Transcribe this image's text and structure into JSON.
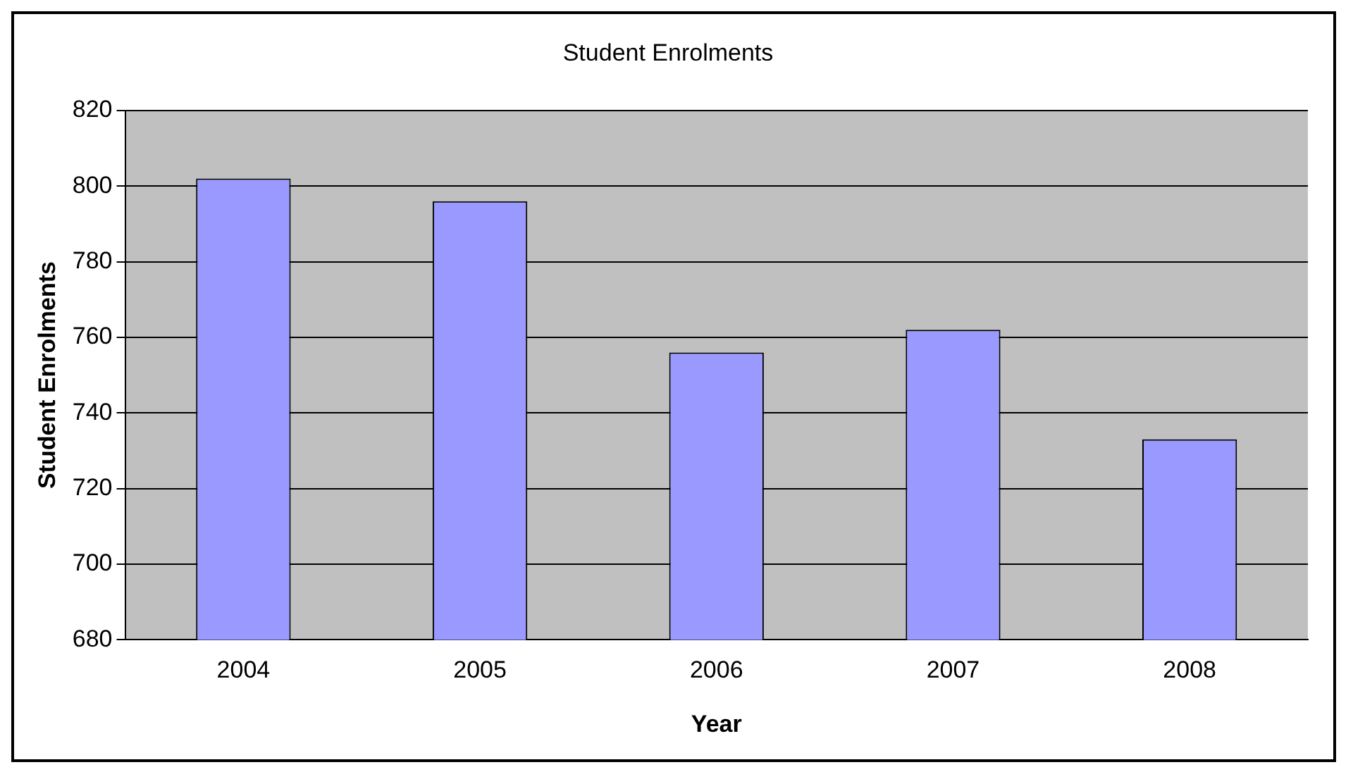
{
  "chart_data": {
    "type": "bar",
    "title": "Student Enrolments",
    "xlabel": "Year",
    "ylabel": "Student Enrolments",
    "categories": [
      "2004",
      "2005",
      "2006",
      "2007",
      "2008"
    ],
    "values": [
      802,
      796,
      756,
      762,
      733
    ],
    "color": "#9999ff",
    "ylim": [
      680,
      820
    ],
    "yticks": [
      680,
      700,
      720,
      740,
      760,
      780,
      800,
      820
    ],
    "grid": "y",
    "legend": false
  }
}
